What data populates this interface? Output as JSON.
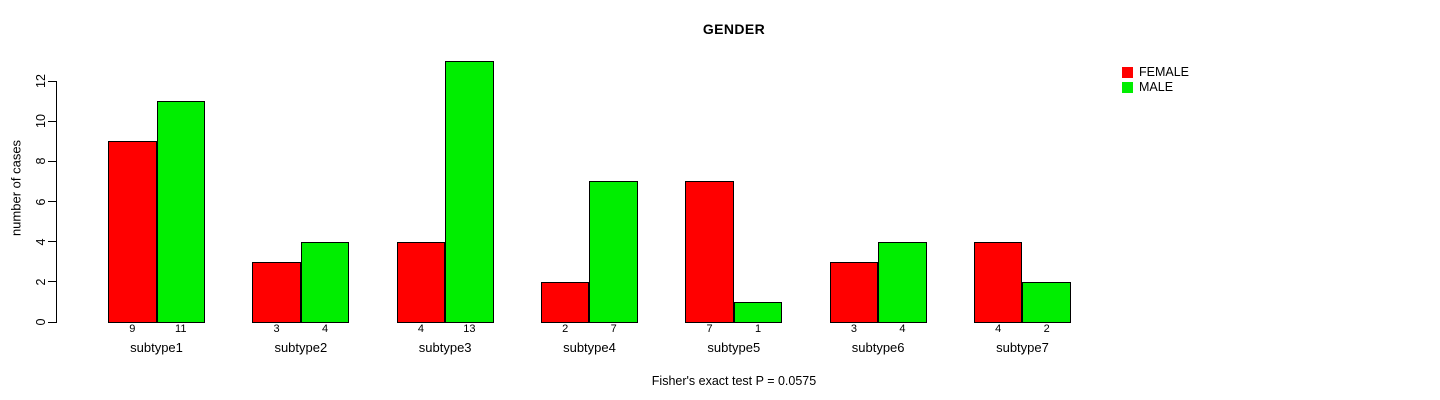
{
  "chart_data": {
    "type": "bar",
    "title": "GENDER",
    "ylabel": "number of cases",
    "xlabel": "",
    "categories": [
      "subtype1",
      "subtype2",
      "subtype3",
      "subtype4",
      "subtype5",
      "subtype6",
      "subtype7"
    ],
    "series": [
      {
        "name": "FEMALE",
        "color": "#FF0000",
        "values": [
          9,
          3,
          4,
          2,
          7,
          3,
          4
        ]
      },
      {
        "name": "MALE",
        "color": "#00EE00",
        "values": [
          11,
          4,
          13,
          7,
          1,
          4,
          2
        ]
      }
    ],
    "bar_count_labels": {
      "FEMALE": [
        9,
        3,
        4,
        2,
        7,
        3,
        4
      ],
      "MALE": [
        11,
        4,
        13,
        7,
        1,
        4,
        2
      ]
    },
    "yticks": [
      0,
      2,
      4,
      6,
      8,
      10,
      12
    ],
    "ylim": [
      0,
      13
    ],
    "grid": false,
    "legend_position": "top-right",
    "bar_border_color": "#000000",
    "caption": "Fisher's exact test P = 0.0575"
  }
}
